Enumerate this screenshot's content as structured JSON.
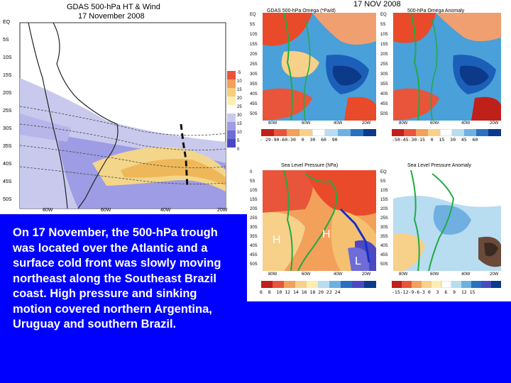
{
  "caption": "On 17 November, the 500-hPa trough was located over the Atlantic and a surface cold front was slowly moving northeast along the Southeast Brazil coast. High pressure and sinking motion covered northern Argentina, Uruguay and southern Brazil.",
  "left_map": {
    "title": "GDAS 500-hPa HT & Wind",
    "date": "17 November 2008",
    "lat_labels": [
      "EQ",
      "5S",
      "10S",
      "15S",
      "20S",
      "25S",
      "30S",
      "35S",
      "40S",
      "45S",
      "50S"
    ],
    "lon_labels": [
      "80W",
      "60W",
      "40W",
      "20W"
    ],
    "colorbar_labels": [
      "-5",
      "10",
      "15",
      "20",
      "25",
      "30",
      "15",
      "10",
      "5",
      "0"
    ]
  },
  "right_date": "17 NOV 2008",
  "omega_map": {
    "title": "GDAS 500-hPa Omega (*Pa/d)",
    "lat_labels": [
      "EQ",
      "5S",
      "10S",
      "15S",
      "20S",
      "25S",
      "30S",
      "35S",
      "40S",
      "45S",
      "50S"
    ],
    "lon_labels": [
      "80W",
      "60W",
      "40W",
      "20W"
    ],
    "colorbar": "- 29-90-60-30  0  30  60  90"
  },
  "omega_anom_map": {
    "title": "500-hPa Omega Anomaly",
    "lat_labels": [
      "EQ",
      "5S",
      "10S",
      "15S",
      "20S",
      "25S",
      "30S",
      "35S",
      "40S",
      "45S",
      "50S"
    ],
    "lon_labels": [
      "80W",
      "60W",
      "40W",
      "20W"
    ],
    "colorbar": "-50-45-30-15  0  15  30  45  60"
  },
  "slp_map": {
    "title": "Sea Level Pressure (hPa)",
    "lat_labels": [
      "0",
      "5S",
      "10S",
      "15S",
      "20S",
      "25S",
      "30S",
      "35S",
      "40S",
      "45S",
      "50S"
    ],
    "lon_labels": [
      "80W",
      "60W",
      "40W",
      "20W"
    ],
    "colorbar": "6  8  10 12 14 16 18 20 22 24",
    "high_label_1": "H",
    "high_label_2": "H",
    "low_label": "L"
  },
  "slp_anom_map": {
    "title": "Sea Level Pressure Anomaly",
    "lat_labels": [
      "EQ",
      "5S",
      "10S",
      "15S",
      "20S",
      "25S",
      "30S",
      "35S",
      "40S",
      "45S",
      "50S"
    ],
    "lon_labels": [
      "80W",
      "60W",
      "40W",
      "20W"
    ],
    "colorbar": "-15-12-9-6-3 0  3  6  9  12 15"
  }
}
